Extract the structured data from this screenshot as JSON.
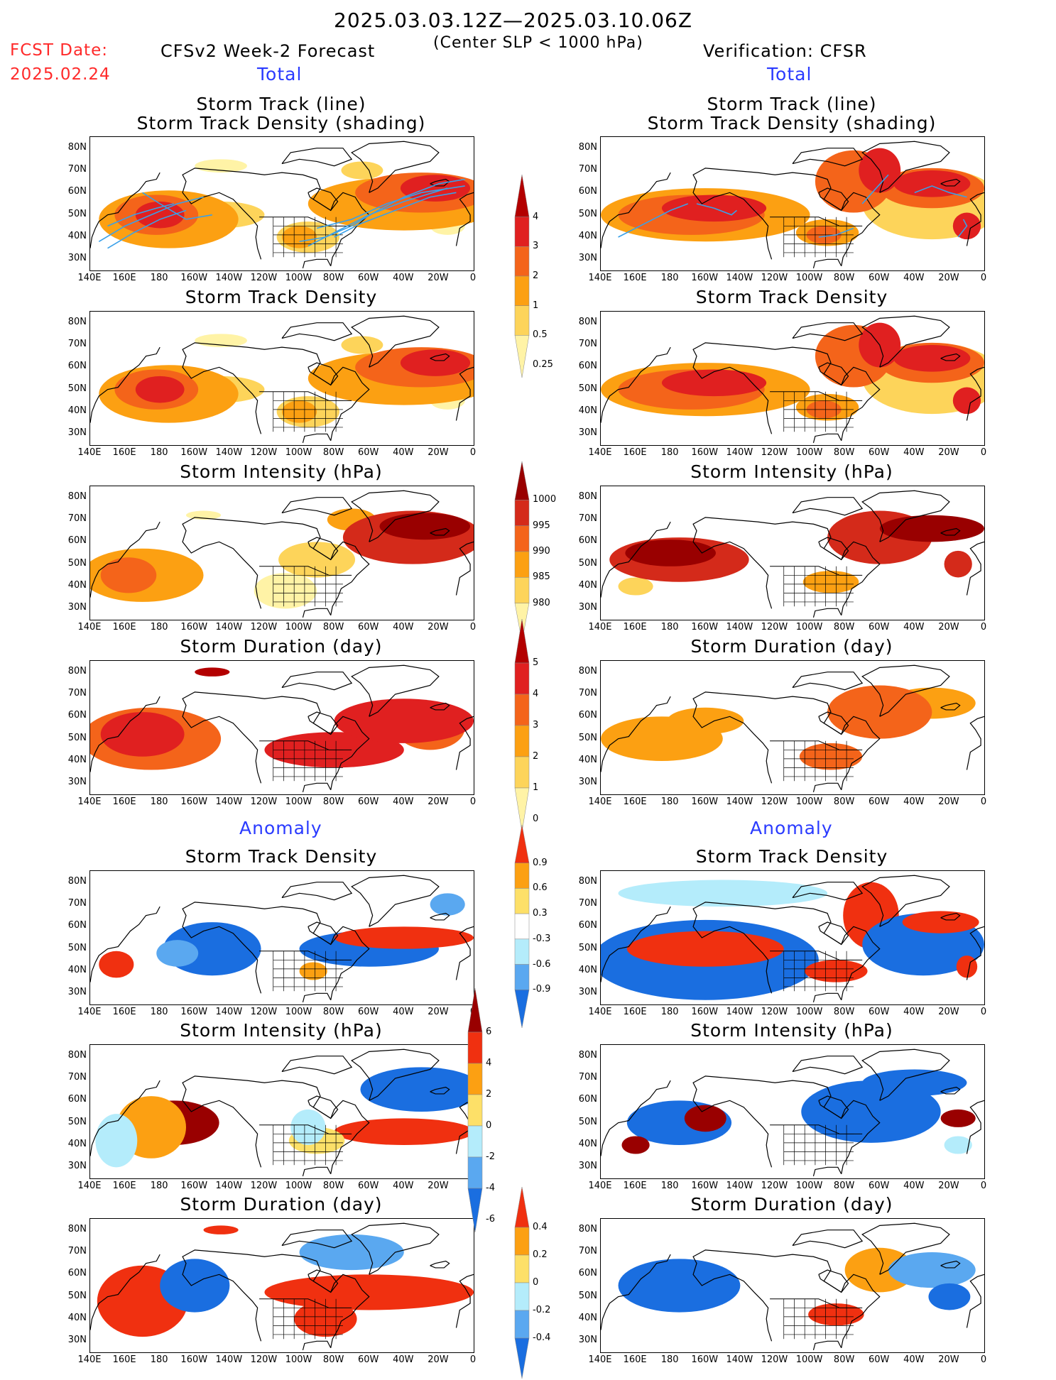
{
  "header": {
    "period": "2025.03.03.12Z—2025.03.10.06Z",
    "criterion": "(Center SLP < 1000 hPa)",
    "fcst_label": "FCST Date:",
    "fcst_date": "2025.02.24",
    "left_title": "CFSv2 Week-2 Forecast",
    "right_title": "Verification: CFSR"
  },
  "sections": {
    "total": "Total",
    "anomaly": "Anomaly"
  },
  "panel_titles": {
    "track_line": "Storm Track (line)",
    "track_shading": "Storm Track Density (shading)",
    "density": "Storm Track Density",
    "intensity": "Storm Intensity (hPa)",
    "duration": "Storm Duration (day)"
  },
  "axes": {
    "lat_labels": [
      "80N",
      "70N",
      "60N",
      "50N",
      "40N",
      "30N"
    ],
    "lon_labels": [
      "140E",
      "160E",
      "180",
      "160W",
      "140W",
      "120W",
      "100W",
      "80W",
      "60W",
      "40W",
      "20W",
      "0"
    ]
  },
  "colorbars": {
    "density_total": {
      "labels": [
        "4",
        "3",
        "2",
        "1",
        "0.5",
        "0.25"
      ],
      "colors": [
        "#b30000",
        "#e02020",
        "#f4641a",
        "#fca012",
        "#fdd45a",
        "#fff3a6"
      ]
    },
    "intensity_total": {
      "labels": [
        "1000",
        "995",
        "990",
        "985",
        "980"
      ],
      "colors": [
        "#fff3a6",
        "#fdd45a",
        "#fca012",
        "#f4641a",
        "#d42a1a",
        "#990000"
      ]
    },
    "duration_total": {
      "labels": [
        "5",
        "4",
        "3",
        "2",
        "1",
        "0"
      ],
      "colors": [
        "#b30000",
        "#e02020",
        "#f4641a",
        "#fca012",
        "#fdd45a",
        "#fff3a6"
      ]
    },
    "density_anom": {
      "labels": [
        "0.9",
        "0.6",
        "0.3",
        "-0.3",
        "-0.6",
        "-0.9"
      ],
      "colors": [
        "#f03010",
        "#fca012",
        "#fde068",
        "#ffffff",
        "#b4ecfb",
        "#5aa8f0",
        "#1a6ee0"
      ]
    },
    "intensity_anom": {
      "labels": [
        "6",
        "4",
        "2",
        "0",
        "-2",
        "-4",
        "-6"
      ],
      "colors": [
        "#990000",
        "#f03010",
        "#fca012",
        "#fde068",
        "#b4ecfb",
        "#5aa8f0",
        "#1a6ee0"
      ]
    },
    "duration_anom": {
      "labels": [
        "0.4",
        "0.2",
        "0",
        "-0.2",
        "-0.4"
      ],
      "colors": [
        "#f03010",
        "#fca012",
        "#fde068",
        "#b4ecfb",
        "#5aa8f0",
        "#1a6ee0"
      ]
    }
  },
  "chart_data": [
    {
      "type": "heatmap",
      "panel": "forecast-track-density-with-tracks",
      "value": "storm track density (shading) with storm tracks (lines)",
      "region": "140E-0, 25N-85N"
    },
    {
      "type": "heatmap",
      "panel": "verification-track-density-with-tracks",
      "value": "storm track density (shading) with storm tracks (lines)",
      "region": "140E-0, 25N-85N"
    },
    {
      "type": "heatmap",
      "panel": "forecast-track-density",
      "value": "storm track density",
      "levels": [
        0.25,
        0.5,
        1,
        2,
        3,
        4
      ]
    },
    {
      "type": "heatmap",
      "panel": "verification-track-density",
      "value": "storm track density",
      "levels": [
        0.25,
        0.5,
        1,
        2,
        3,
        4
      ]
    },
    {
      "type": "heatmap",
      "panel": "forecast-intensity",
      "value": "storm intensity (hPa)",
      "levels": [
        1000,
        995,
        990,
        985,
        980
      ]
    },
    {
      "type": "heatmap",
      "panel": "verification-intensity",
      "value": "storm intensity (hPa)",
      "levels": [
        1000,
        995,
        990,
        985,
        980
      ]
    },
    {
      "type": "heatmap",
      "panel": "forecast-duration",
      "value": "storm duration (day)",
      "levels": [
        0,
        1,
        2,
        3,
        4,
        5
      ]
    },
    {
      "type": "heatmap",
      "panel": "verification-duration",
      "value": "storm duration (day)",
      "levels": [
        0,
        1,
        2,
        3,
        4,
        5
      ]
    },
    {
      "type": "heatmap",
      "panel": "forecast-density-anomaly",
      "value": "storm track density anomaly",
      "levels": [
        -0.9,
        -0.6,
        -0.3,
        0.3,
        0.6,
        0.9
      ]
    },
    {
      "type": "heatmap",
      "panel": "verification-density-anomaly",
      "value": "storm track density anomaly",
      "levels": [
        -0.9,
        -0.6,
        -0.3,
        0.3,
        0.6,
        0.9
      ]
    },
    {
      "type": "heatmap",
      "panel": "forecast-intensity-anomaly",
      "value": "storm intensity anomaly (hPa)",
      "levels": [
        -6,
        -4,
        -2,
        0,
        2,
        4,
        6
      ]
    },
    {
      "type": "heatmap",
      "panel": "verification-intensity-anomaly",
      "value": "storm intensity anomaly (hPa)",
      "levels": [
        -6,
        -4,
        -2,
        0,
        2,
        4,
        6
      ]
    },
    {
      "type": "heatmap",
      "panel": "forecast-duration-anomaly",
      "value": "storm duration anomaly (day)",
      "levels": [
        -0.4,
        -0.2,
        0,
        0.2,
        0.4
      ]
    },
    {
      "type": "heatmap",
      "panel": "verification-duration-anomaly",
      "value": "storm duration anomaly (day)",
      "levels": [
        -0.4,
        -0.2,
        0,
        0.2,
        0.4
      ]
    }
  ]
}
